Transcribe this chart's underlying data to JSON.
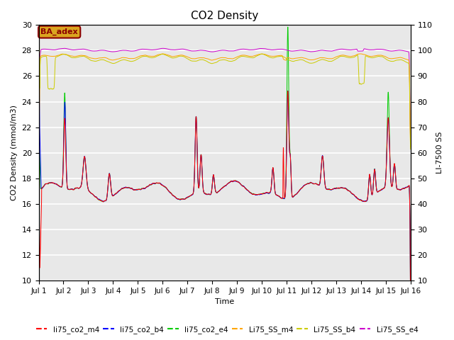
{
  "title": "CO2 Density",
  "xlabel": "Time",
  "ylabel_left": "CO2 Density (mmol/m3)",
  "ylabel_right": "LI-7500 SS",
  "annotation_text": "BA_adex",
  "annotation_color": "#8B0000",
  "annotation_bg": "#DAA520",
  "ylim_left": [
    10,
    30
  ],
  "ylim_right": [
    10,
    110
  ],
  "yticks_left": [
    10,
    12,
    14,
    16,
    18,
    20,
    22,
    24,
    26,
    28,
    30
  ],
  "yticks_right": [
    10,
    20,
    30,
    40,
    50,
    60,
    70,
    80,
    90,
    100,
    110
  ],
  "x_start": 1,
  "x_end": 16,
  "x_ticks": [
    1,
    2,
    3,
    4,
    5,
    6,
    7,
    8,
    9,
    10,
    11,
    12,
    13,
    14,
    15,
    16
  ],
  "x_tick_labels": [
    "Jul 1",
    "Jul 2",
    "Jul 3",
    "Jul 4",
    "Jul 5",
    "Jul 6",
    "Jul 7",
    "Jul 8",
    "Jul 9",
    "Jul 10",
    "Jul 11",
    "Jul 12",
    "Jul 13",
    "Jul 14",
    "Jul 15",
    "Jul 16"
  ],
  "series": {
    "li75_co2_m4": {
      "color": "#FF0000",
      "label": "li75_co2_m4"
    },
    "li75_co2_b4": {
      "color": "#0000FF",
      "label": "li75_co2_b4"
    },
    "li75_co2_e4": {
      "color": "#00CC00",
      "label": "li75_co2_e4"
    },
    "Li75_SS_m4": {
      "color": "#FFA500",
      "label": "Li75_SS_m4"
    },
    "Li75_SS_b4": {
      "color": "#CCCC00",
      "label": "Li75_SS_b4"
    },
    "Li75_SS_e4": {
      "color": "#CC00CC",
      "label": "Li75_SS_e4"
    }
  },
  "background_color": "#E8E8E8",
  "grid_color": "#FFFFFF",
  "title_fontsize": 11,
  "figsize": [
    6.4,
    4.8
  ],
  "dpi": 100
}
